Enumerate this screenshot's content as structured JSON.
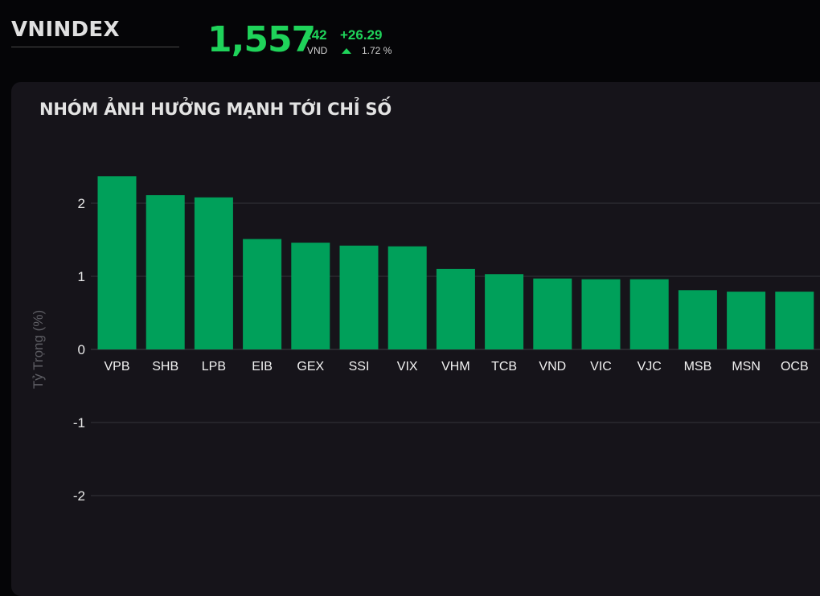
{
  "header": {
    "index_name": "VNINDEX",
    "price_main": "1,557",
    "price_decimal": ".42",
    "price_unit": "VND",
    "change": "+26.29",
    "change_pct": "1.72 %",
    "trend_icon": "triangle-up-icon",
    "accent_color": "#1fd35a"
  },
  "panel": {
    "title": "NHÓM ẢNH HƯỞNG MẠNH TỚI CHỈ SỐ"
  },
  "chart_data": {
    "type": "bar",
    "categories": [
      "VPB",
      "SHB",
      "LPB",
      "EIB",
      "GEX",
      "SSI",
      "VIX",
      "VHM",
      "TCB",
      "VND",
      "VIC",
      "VJC",
      "MSB",
      "MSN",
      "OCB"
    ],
    "values": [
      2.37,
      2.11,
      2.08,
      1.51,
      1.46,
      1.42,
      1.41,
      1.1,
      1.03,
      0.97,
      0.96,
      0.96,
      0.81,
      0.79,
      0.79
    ],
    "ylabel": "Tỷ Trọng (%)",
    "yticks": [
      2,
      1,
      0,
      -1,
      -2
    ],
    "ylim": [
      -2.5,
      2.6
    ],
    "grid": true,
    "bar_color": "#00a05a"
  }
}
